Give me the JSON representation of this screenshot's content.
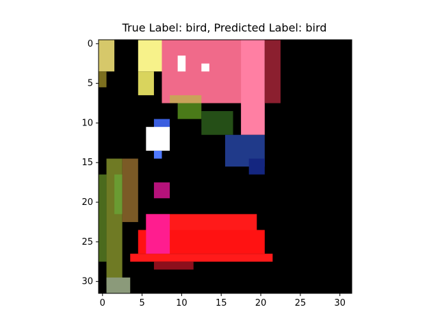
{
  "figure": {
    "title": "True Label: bird, Predicted Label: bird"
  },
  "image": {
    "rows": 32,
    "cols": 32,
    "xticks": [
      "0",
      "5",
      "10",
      "15",
      "20",
      "25",
      "30"
    ],
    "yticks": [
      "0",
      "5",
      "10",
      "15",
      "20",
      "25",
      "30"
    ],
    "background_color": "#000000",
    "regions": [
      {
        "name": "yellow-top-left-edge",
        "color": "#d6c86a",
        "r0": 0,
        "r1": 4,
        "c0": 0,
        "c1": 2
      },
      {
        "name": "yellow-top-left-edge-dark",
        "color": "#7c6f1f",
        "r0": 4,
        "r1": 6,
        "c0": 0,
        "c1": 1
      },
      {
        "name": "yellow-flower-patch",
        "color": "#f7f28a",
        "r0": 0,
        "r1": 4,
        "c0": 5,
        "c1": 8
      },
      {
        "name": "yellow-flower-patch-lower",
        "color": "#d9d45d",
        "r0": 4,
        "r1": 7,
        "c0": 5,
        "c1": 7
      },
      {
        "name": "pink-flower-patch",
        "color": "#f06a8a",
        "r0": 0,
        "r1": 8,
        "c0": 8,
        "c1": 20
      },
      {
        "name": "white-highlight-1",
        "color": "#ffffff",
        "r0": 2,
        "r1": 4,
        "c0": 10,
        "c1": 11
      },
      {
        "name": "white-highlight-2",
        "color": "#ffffff",
        "r0": 3,
        "r1": 4,
        "c0": 13,
        "c1": 14
      },
      {
        "name": "pink-right-tail",
        "color": "#ff7fa3",
        "r0": 0,
        "r1": 12,
        "c0": 18,
        "c1": 21
      },
      {
        "name": "dark-red-upper",
        "color": "#8b1f2f",
        "r0": 0,
        "r1": 8,
        "c0": 21,
        "c1": 23
      },
      {
        "name": "tan-band",
        "color": "#c9a25a",
        "r0": 7,
        "r1": 8,
        "c0": 9,
        "c1": 13
      },
      {
        "name": "green-band",
        "color": "#4a7a19",
        "r0": 8,
        "r1": 10,
        "c0": 10,
        "c1": 13
      },
      {
        "name": "dark-green-band",
        "color": "#254f17",
        "r0": 9,
        "r1": 12,
        "c0": 13,
        "c1": 17
      },
      {
        "name": "blue-small",
        "color": "#3b5fe0",
        "r0": 10,
        "r1": 12,
        "c0": 7,
        "c1": 9
      },
      {
        "name": "white-eye",
        "color": "#ffffff",
        "r0": 11,
        "r1": 14,
        "c0": 6,
        "c1": 9
      },
      {
        "name": "blue-below-eye",
        "color": "#4f79ff",
        "r0": 14,
        "r1": 15,
        "c0": 7,
        "c1": 8
      },
      {
        "name": "blue-dark-right",
        "color": "#203a8a",
        "r0": 12,
        "r1": 16,
        "c0": 16,
        "c1": 21
      },
      {
        "name": "blue-lower-right",
        "color": "#142680",
        "r0": 15,
        "r1": 17,
        "c0": 19,
        "c1": 21
      },
      {
        "name": "stem-olive",
        "color": "#6f7a24",
        "r0": 15,
        "r1": 31,
        "c0": 1,
        "c1": 3
      },
      {
        "name": "stem-green",
        "color": "#4b6a1d",
        "r0": 17,
        "r1": 28,
        "c0": 0,
        "c1": 1
      },
      {
        "name": "stem-bright-green",
        "color": "#6a9b32",
        "r0": 17,
        "r1": 22,
        "c0": 2,
        "c1": 3
      },
      {
        "name": "stem-brown",
        "color": "#7b5a26",
        "r0": 15,
        "r1": 23,
        "c0": 3,
        "c1": 5
      },
      {
        "name": "stem-base",
        "color": "#8b9a7a",
        "r0": 30,
        "r1": 32,
        "c0": 1,
        "c1": 4
      },
      {
        "name": "small-magenta",
        "color": "#b5127a",
        "r0": 18,
        "r1": 20,
        "c0": 7,
        "c1": 9
      },
      {
        "name": "red-body-upper",
        "color": "#ff1a1a",
        "r0": 22,
        "r1": 24,
        "c0": 6,
        "c1": 20
      },
      {
        "name": "red-body-main",
        "color": "#ff1212",
        "r0": 24,
        "r1": 27,
        "c0": 5,
        "c1": 21
      },
      {
        "name": "red-body-bottom",
        "color": "#ff1a1a",
        "r0": 27,
        "r1": 28,
        "c0": 4,
        "c1": 22
      },
      {
        "name": "pink-body-left",
        "color": "#ff1d8f",
        "r0": 22,
        "r1": 27,
        "c0": 6,
        "c1": 9
      },
      {
        "name": "dark-red-bottom",
        "color": "#8d0f1c",
        "r0": 28,
        "r1": 29,
        "c0": 7,
        "c1": 12
      }
    ]
  }
}
